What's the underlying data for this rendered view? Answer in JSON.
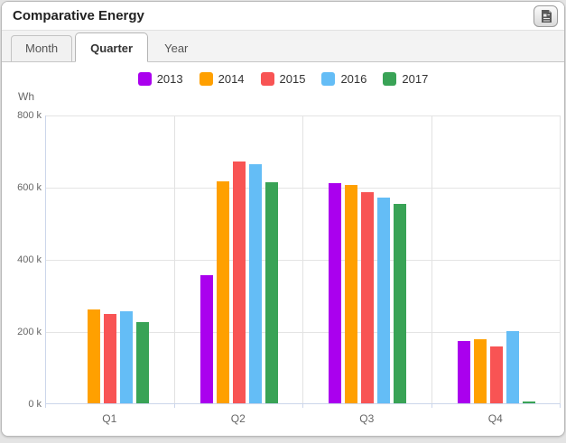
{
  "panel": {
    "title": "Comparative Energy",
    "export_button": {
      "icon": "report-document-icon"
    }
  },
  "tabs": [
    {
      "label": "Month",
      "active": false
    },
    {
      "label": "Quarter",
      "active": true
    },
    {
      "label": "Year",
      "active": false
    }
  ],
  "chart_data": {
    "type": "bar",
    "title": "",
    "unit_label": "Wh",
    "categories": [
      "Q1",
      "Q2",
      "Q3",
      "Q4"
    ],
    "series": [
      {
        "name": "2013",
        "color": "#aa00ee",
        "values": [
          null,
          355000,
          610000,
          172000
        ]
      },
      {
        "name": "2014",
        "color": "#ffa000",
        "values": [
          260000,
          616000,
          606000,
          177000
        ]
      },
      {
        "name": "2015",
        "color": "#f85454",
        "values": [
          247000,
          670000,
          584000,
          158000
        ]
      },
      {
        "name": "2016",
        "color": "#64bdf6",
        "values": [
          254000,
          663000,
          571000,
          199000
        ]
      },
      {
        "name": "2017",
        "color": "#39a356",
        "values": [
          224000,
          613000,
          552000,
          5000
        ]
      }
    ],
    "ylim": [
      0,
      800000
    ],
    "ytick_step": 200000,
    "ytick_labels": [
      "0 k",
      "200 k",
      "400 k",
      "600 k",
      "800 k"
    ],
    "grid": true,
    "legend_position": "top"
  }
}
